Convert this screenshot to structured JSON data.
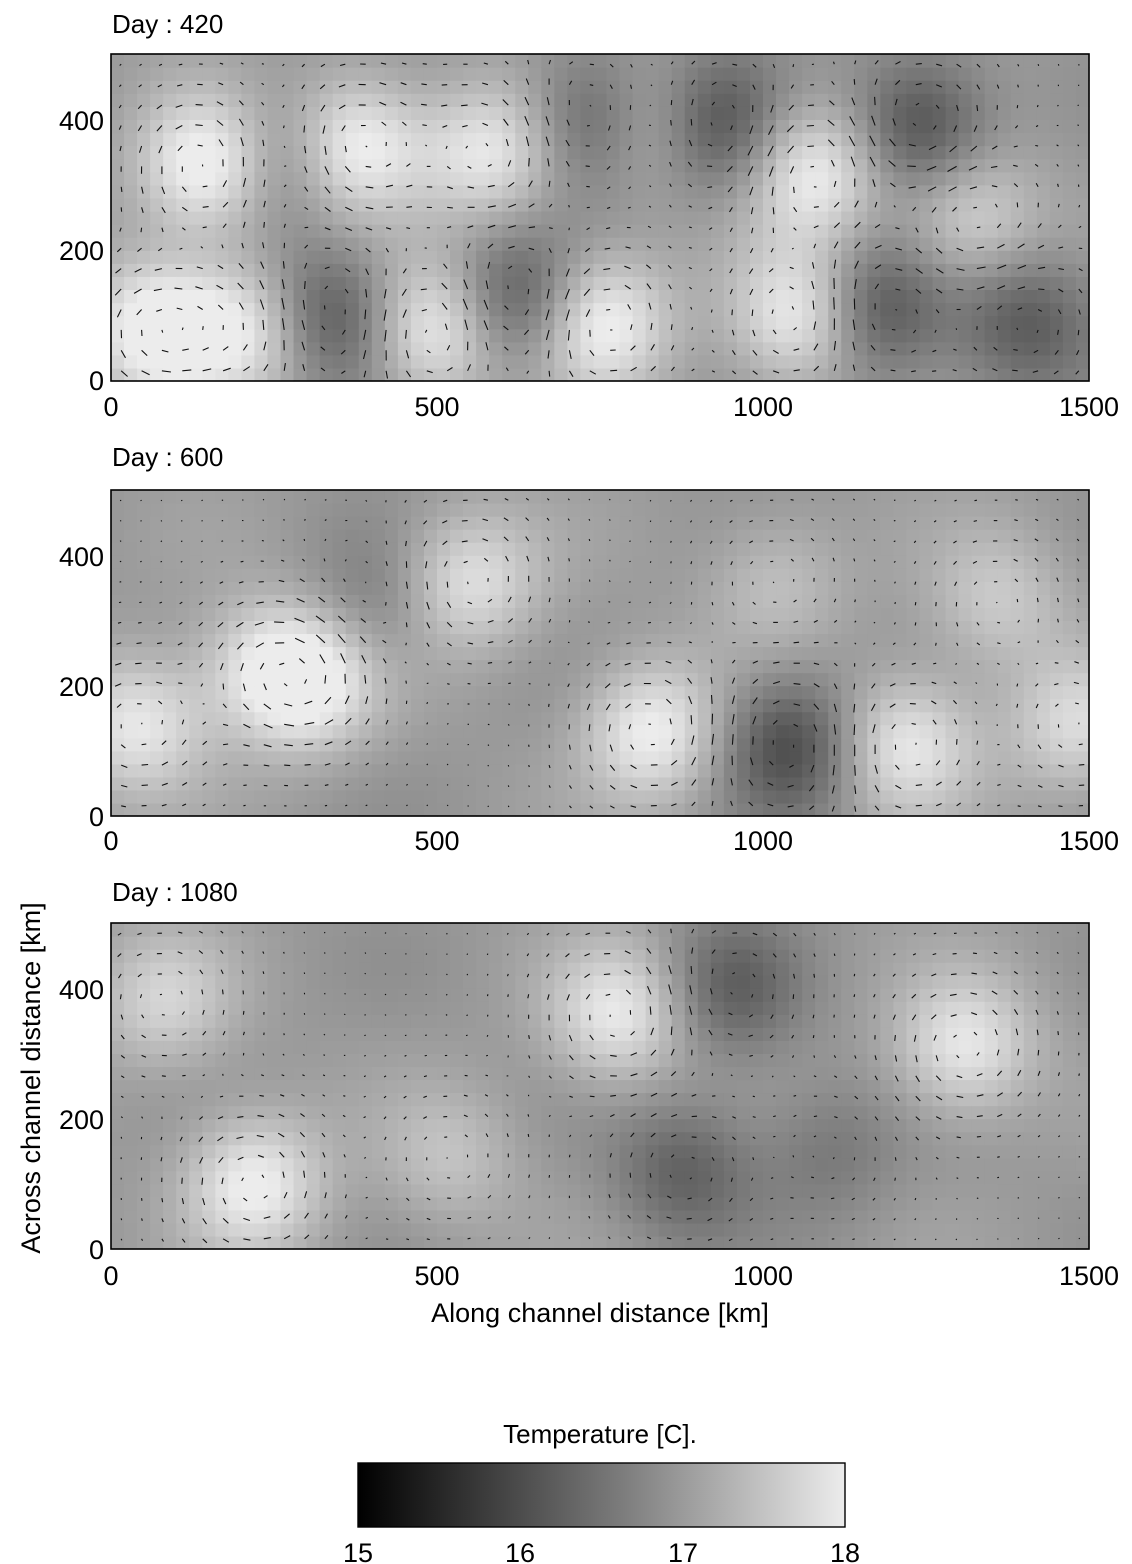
{
  "chart_data": [
    {
      "type": "heatmap",
      "title": "Day : 420",
      "x_range": [
        0,
        1500
      ],
      "y_range": [
        0,
        500
      ],
      "xticks": [
        "0",
        "500",
        "1000",
        "1500"
      ],
      "yticks": [
        "0",
        "200",
        "400"
      ],
      "eddies": [
        {
          "x": 150,
          "y": 330,
          "sign": 1.3
        },
        {
          "x": 370,
          "y": 360,
          "sign": 1.3
        },
        {
          "x": 580,
          "y": 350,
          "sign": 1.0
        },
        {
          "x": 750,
          "y": 400,
          "sign": -1.0
        },
        {
          "x": 830,
          "y": 390,
          "sign": 1.0
        },
        {
          "x": 920,
          "y": 390,
          "sign": -1.1
        },
        {
          "x": 1080,
          "y": 320,
          "sign": 1.1
        },
        {
          "x": 1240,
          "y": 390,
          "sign": -1.0
        },
        {
          "x": 1320,
          "y": 250,
          "sign": 0.8
        },
        {
          "x": 70,
          "y": 80,
          "sign": 1.3
        },
        {
          "x": 220,
          "y": 80,
          "sign": 1.0
        },
        {
          "x": 330,
          "y": 100,
          "sign": -1.0
        },
        {
          "x": 500,
          "y": 80,
          "sign": 1.2
        },
        {
          "x": 620,
          "y": 120,
          "sign": -1.0
        },
        {
          "x": 750,
          "y": 90,
          "sign": 1.2
        },
        {
          "x": 1060,
          "y": 100,
          "sign": 1.2
        },
        {
          "x": 1170,
          "y": 110,
          "sign": -1.0
        },
        {
          "x": 270,
          "y": 340,
          "sign": -0.7
        },
        {
          "x": 1400,
          "y": 90,
          "sign": -0.8
        }
      ]
    },
    {
      "type": "heatmap",
      "title": "Day : 600",
      "x_range": [
        0,
        1500
      ],
      "y_range": [
        0,
        500
      ],
      "xticks": [
        "0",
        "500",
        "1000",
        "1500"
      ],
      "yticks": [
        "0",
        "200",
        "400"
      ],
      "eddies": [
        {
          "x": 300,
          "y": 210,
          "sign": 1.2
        },
        {
          "x": 550,
          "y": 360,
          "sign": 0.9
        },
        {
          "x": 40,
          "y": 140,
          "sign": 1.0
        },
        {
          "x": 830,
          "y": 130,
          "sign": 1.1
        },
        {
          "x": 1220,
          "y": 110,
          "sign": 1.0
        },
        {
          "x": 1040,
          "y": 110,
          "sign": -1.0
        },
        {
          "x": 1480,
          "y": 140,
          "sign": 0.8
        },
        {
          "x": 1020,
          "y": 360,
          "sign": 0.5
        },
        {
          "x": 1360,
          "y": 330,
          "sign": 0.6
        },
        {
          "x": 230,
          "y": 230,
          "sign": 0.6
        },
        {
          "x": 400,
          "y": 320,
          "sign": -0.4
        }
      ]
    },
    {
      "type": "heatmap",
      "title": "Day : 1080",
      "x_range": [
        0,
        1500
      ],
      "y_range": [
        0,
        500
      ],
      "xticks": [
        "0",
        "500",
        "1000",
        "1500"
      ],
      "yticks": [
        "0",
        "200",
        "400"
      ],
      "xlabel": "Along channel distance [km]",
      "ylabel": "Across channel distance [km]",
      "eddies": [
        {
          "x": 220,
          "y": 100,
          "sign": 1.1
        },
        {
          "x": 780,
          "y": 360,
          "sign": 1.0
        },
        {
          "x": 1310,
          "y": 310,
          "sign": 1.0
        },
        {
          "x": 80,
          "y": 380,
          "sign": 0.7
        },
        {
          "x": 880,
          "y": 120,
          "sign": -0.7
        },
        {
          "x": 950,
          "y": 400,
          "sign": -0.7
        },
        {
          "x": 520,
          "y": 140,
          "sign": 0.5
        },
        {
          "x": 1100,
          "y": 150,
          "sign": -0.4
        }
      ]
    }
  ],
  "colorbar": {
    "title": "Temperature [C].",
    "range": [
      15,
      18
    ],
    "ticks": [
      "15",
      "16",
      "17",
      "18"
    ]
  }
}
